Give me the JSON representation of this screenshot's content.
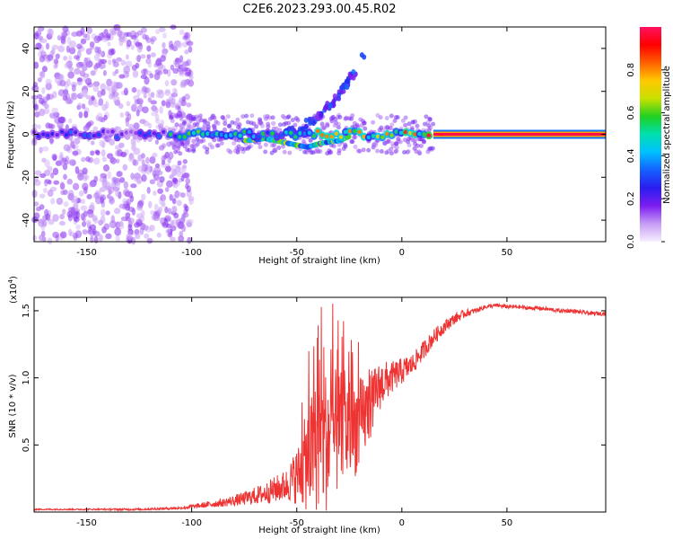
{
  "title": "C2E6.2023.293.00.45.R02",
  "chart_data": [
    {
      "type": "heatmap",
      "xlabel": "Height of straight line (km)",
      "ylabel": "Frequency (Hz)",
      "xlim": [
        -175,
        97
      ],
      "ylim": [
        -50,
        50
      ],
      "x_ticks": [
        -150,
        -100,
        -50,
        0,
        50
      ],
      "y_ticks": [
        -40,
        -20,
        0,
        20,
        40
      ],
      "colorbar": {
        "label": "Normalized spectral amplitude",
        "range": [
          0,
          1
        ],
        "ticks": [
          "0.0",
          "0.2",
          "0.4",
          "0.6",
          "0.8"
        ],
        "colors": [
          "#f6f0ff",
          "#c79cf5",
          "#7d1df0",
          "#2a1df0",
          "#1560ff",
          "#00c0ff",
          "#00e0b0",
          "#20d020",
          "#c8e000",
          "#ffc800",
          "#ff6000",
          "#ff0000",
          "#ff1060"
        ]
      },
      "features": {
        "carrier_line": {
          "x_range": [
            -175,
            97
          ],
          "freq": 0,
          "level_by_region": [
            {
              "x_range": [
                -175,
                -110
              ],
              "level": 0.25
            },
            {
              "x_range": [
                -110,
                -40
              ],
              "level": 0.45
            },
            {
              "x_range": [
                -40,
                15
              ],
              "level": 0.7
            },
            {
              "x_range": [
                15,
                97
              ],
              "level": 0.95
            }
          ]
        },
        "upper_branch": {
          "points": [
            [
              -55,
              0
            ],
            [
              -45,
              5
            ],
            [
              -38,
              10
            ],
            [
              -32,
              16
            ],
            [
              -27,
              22
            ],
            [
              -25,
              26
            ],
            [
              -22,
              28
            ]
          ],
          "level": 0.25
        },
        "outlier_points": [
          [
            -18,
            36
          ],
          [
            -19,
            37
          ]
        ],
        "lower_wiggle": {
          "points": [
            [
              -75,
              -3
            ],
            [
              -65,
              -2
            ],
            [
              -55,
              -4
            ],
            [
              -45,
              -6
            ],
            [
              -38,
              -4
            ],
            [
              -30,
              -3
            ],
            [
              -25,
              -1
            ]
          ],
          "level": 0.5
        },
        "noise_region": {
          "x_range": [
            -175,
            -100
          ],
          "freq_range": [
            -50,
            50
          ],
          "level": 0.12
        }
      }
    },
    {
      "type": "line",
      "xlabel": "Height of straight line (km)",
      "ylabel": "SNR (10 * v/v)",
      "y_multiplier": "(x10",
      "y_multiplier_exp": "4",
      "y_multiplier_close": ")",
      "xlim": [
        -175,
        97
      ],
      "ylim": [
        0,
        1.6
      ],
      "x_ticks": [
        -150,
        -100,
        -50,
        0,
        50
      ],
      "y_ticks": [
        "0.5",
        "1.0",
        "1.5"
      ],
      "series": [
        {
          "color": "#ee3333",
          "x": [
            -175,
            -150,
            -125,
            -105,
            -95,
            -85,
            -75,
            -65,
            -55,
            -48,
            -45,
            -40,
            -35,
            -30,
            -25,
            -20,
            -15,
            -10,
            -5,
            0,
            5,
            10,
            15,
            20,
            25,
            30,
            35,
            40,
            45,
            50,
            55,
            60,
            65,
            70,
            75,
            80,
            85,
            90,
            95
          ],
          "y": [
            0.02,
            0.02,
            0.02,
            0.03,
            0.05,
            0.07,
            0.1,
            0.14,
            0.2,
            0.3,
            0.4,
            0.5,
            0.55,
            0.6,
            0.62,
            0.65,
            0.8,
            0.95,
            1.0,
            1.05,
            1.1,
            1.2,
            1.3,
            1.38,
            1.44,
            1.48,
            1.5,
            1.53,
            1.54,
            1.53,
            1.53,
            1.52,
            1.52,
            1.51,
            1.5,
            1.5,
            1.49,
            1.48,
            1.48
          ],
          "noise_amp": [
            0.005,
            0.005,
            0.008,
            0.01,
            0.02,
            0.03,
            0.05,
            0.08,
            0.12,
            0.25,
            0.4,
            0.5,
            0.55,
            0.45,
            0.4,
            0.35,
            0.25,
            0.18,
            0.12,
            0.1,
            0.08,
            0.07,
            0.06,
            0.05,
            0.04,
            0.03,
            0.02,
            0.015,
            0.015,
            0.015,
            0.015,
            0.015,
            0.015,
            0.015,
            0.015,
            0.015,
            0.015,
            0.015,
            0.015
          ]
        }
      ]
    }
  ]
}
